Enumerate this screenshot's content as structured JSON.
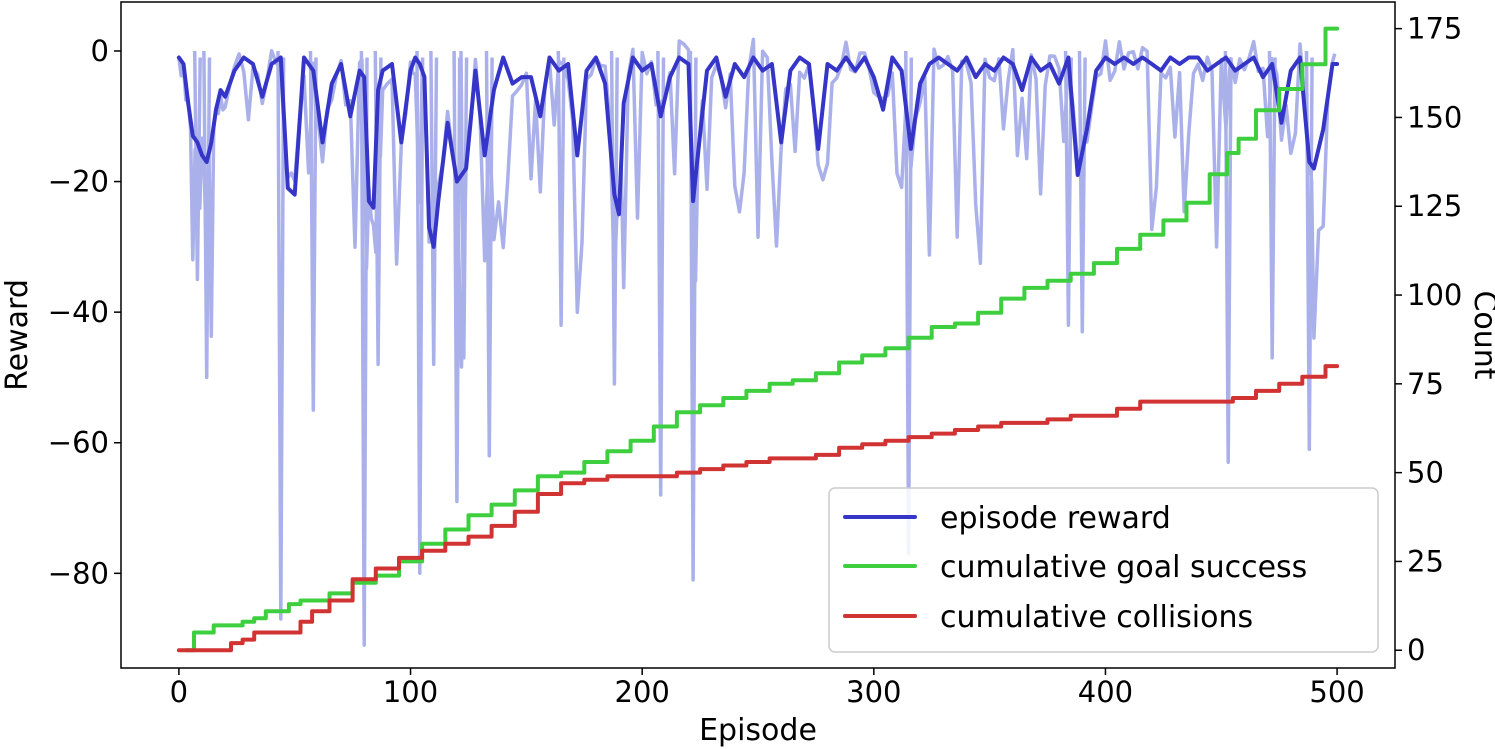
{
  "chart_data": {
    "type": "line",
    "xlabel": "Episode",
    "ylabel_left": "Reward",
    "ylabel_right": "Count",
    "xlim": [
      -25,
      525
    ],
    "ylim_left": [
      -94.5,
      7.5
    ],
    "ylim_right": [
      -5,
      182.5
    ],
    "x_ticks": [
      0,
      100,
      200,
      300,
      400,
      500
    ],
    "y_left_ticks": [
      0,
      -20,
      -40,
      -60,
      -80
    ],
    "y_right_ticks": [
      0,
      25,
      50,
      75,
      100,
      125,
      150,
      175
    ],
    "grid": false,
    "legend_position": "bottom-right",
    "colors": {
      "raw_reward": "#aab0ea",
      "episode_reward": "#3535c8",
      "goal_success": "#3ecf3e",
      "collisions": "#d13333"
    },
    "legend": [
      {
        "label": "episode reward",
        "color": "#3535c8"
      },
      {
        "label": "cumulative goal success",
        "color": "#3ecf3e"
      },
      {
        "label": "cumulative collisions",
        "color": "#d13333"
      }
    ],
    "series": [
      {
        "name": "episode reward",
        "axis": "left",
        "x": [
          0,
          2,
          4,
          6,
          8,
          10,
          12,
          14,
          16,
          18,
          20,
          24,
          28,
          32,
          36,
          40,
          44,
          47,
          50,
          54,
          58,
          62,
          66,
          70,
          74,
          78,
          80,
          82,
          84,
          86,
          88,
          92,
          96,
          100,
          102,
          104,
          106,
          108,
          110,
          112,
          116,
          120,
          124,
          128,
          132,
          136,
          140,
          144,
          148,
          152,
          156,
          160,
          164,
          168,
          172,
          176,
          180,
          184,
          188,
          190,
          192,
          196,
          200,
          204,
          208,
          212,
          216,
          220,
          222,
          224,
          228,
          232,
          236,
          240,
          244,
          248,
          252,
          256,
          260,
          264,
          268,
          272,
          276,
          280,
          284,
          288,
          292,
          296,
          300,
          304,
          308,
          312,
          316,
          320,
          324,
          328,
          332,
          336,
          340,
          344,
          348,
          352,
          356,
          360,
          364,
          368,
          372,
          376,
          380,
          384,
          388,
          392,
          396,
          400,
          404,
          408,
          412,
          416,
          420,
          424,
          428,
          432,
          436,
          440,
          444,
          448,
          452,
          456,
          460,
          464,
          468,
          472,
          476,
          480,
          484,
          488,
          490,
          494,
          498,
          500
        ],
        "y": [
          -1,
          -2,
          -8,
          -13,
          -14,
          -16,
          -17,
          -14,
          -9,
          -6,
          -7,
          -3,
          -1,
          -2,
          -7,
          -2,
          -1,
          -21,
          -22,
          -1,
          -3,
          -14,
          -5,
          -2,
          -10,
          -3,
          -4,
          -23,
          -24,
          -6,
          -3,
          -2,
          -14,
          -3,
          -1,
          -2,
          -4,
          -27,
          -30,
          -23,
          -11,
          -20,
          -18,
          -3,
          -16,
          -6,
          -1,
          -5,
          -4,
          -4,
          -10,
          -1,
          -3,
          -2,
          -16,
          -3,
          -1,
          -5,
          -22,
          -25,
          -8,
          -1,
          -3,
          -2,
          -10,
          -4,
          -1,
          -2,
          -23,
          -16,
          -3,
          -1,
          -7,
          -2,
          -4,
          -1,
          -3,
          -2,
          -14,
          -3,
          -1,
          -2,
          -15,
          -2,
          -3,
          -1,
          -3,
          -1,
          -4,
          -9,
          -1,
          -3,
          -15,
          -5,
          -2,
          -1,
          -2,
          -3,
          -1,
          -4,
          -2,
          -3,
          -1,
          -2,
          -6,
          -1,
          -3,
          -2,
          -5,
          -1,
          -19,
          -12,
          -3,
          -1,
          -2,
          -1,
          -2,
          -1,
          -2,
          -3,
          -1,
          -2,
          -1,
          -1,
          -3,
          -2,
          -1,
          -3,
          -2,
          -1,
          -4,
          -2,
          -11,
          -3,
          -1,
          -17,
          -18,
          -12,
          -2,
          -2
        ]
      },
      {
        "name": "cumulative goal success",
        "axis": "right",
        "x": [
          3,
          10,
          20,
          25,
          30,
          35,
          40,
          45,
          50,
          55,
          60,
          70,
          80,
          90,
          100,
          110,
          120,
          130,
          140,
          150,
          160,
          170,
          180,
          190,
          200,
          210,
          220,
          230,
          240,
          250,
          260,
          270,
          280,
          290,
          300,
          310,
          320,
          330,
          340,
          350,
          360,
          370,
          380,
          390,
          400,
          410,
          420,
          430,
          440,
          450,
          455,
          460,
          470,
          480,
          490,
          500
        ],
        "y": [
          0,
          5,
          7,
          7,
          8,
          9,
          11,
          11,
          13,
          14,
          14,
          16,
          19,
          21,
          25,
          30,
          34,
          38,
          41,
          45,
          49,
          50,
          53,
          56,
          59,
          63,
          67,
          69,
          71,
          73,
          75,
          76,
          78,
          81,
          83,
          85,
          88,
          91,
          92,
          95,
          99,
          102,
          104,
          106,
          109,
          113,
          117,
          121,
          126,
          134,
          140,
          144,
          152,
          158,
          165,
          175
        ]
      },
      {
        "name": "cumulative collisions",
        "axis": "right",
        "x": [
          0,
          10,
          20,
          25,
          30,
          35,
          40,
          50,
          55,
          60,
          70,
          80,
          90,
          100,
          110,
          120,
          130,
          140,
          150,
          160,
          170,
          180,
          190,
          200,
          210,
          220,
          230,
          240,
          250,
          260,
          270,
          280,
          290,
          300,
          310,
          320,
          330,
          340,
          350,
          360,
          370,
          380,
          390,
          400,
          410,
          420,
          430,
          440,
          450,
          460,
          470,
          480,
          490,
          500
        ],
        "y": [
          0,
          0,
          0,
          2,
          3,
          5,
          5,
          5,
          8,
          11,
          14,
          20,
          23,
          26,
          28,
          30,
          32,
          35,
          39,
          44,
          47,
          48,
          49,
          49,
          49,
          50,
          51,
          52,
          53,
          54,
          54,
          55,
          57,
          58,
          59,
          60,
          61,
          62,
          63,
          64,
          64,
          65,
          66,
          66,
          68,
          70,
          70,
          70,
          70,
          71,
          73,
          75,
          77,
          80
        ]
      }
    ]
  }
}
